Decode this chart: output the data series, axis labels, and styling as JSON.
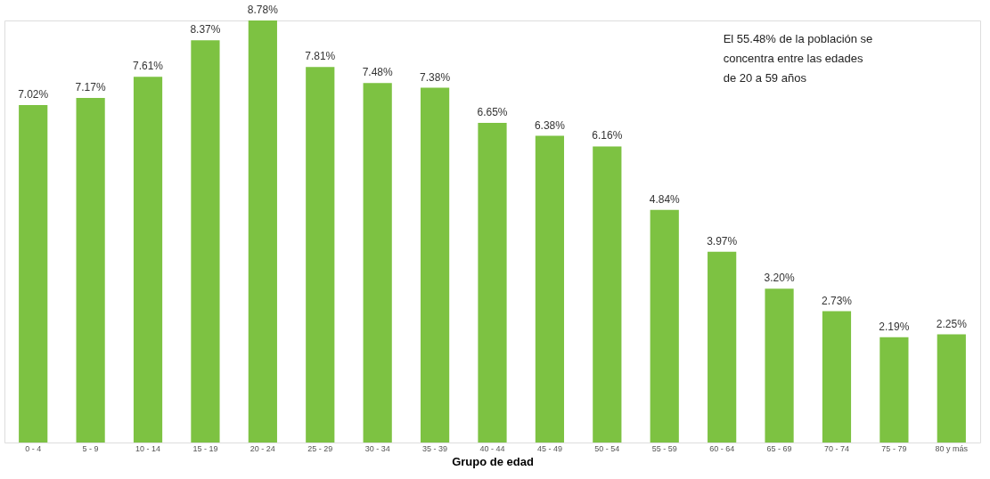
{
  "chart_data": {
    "type": "bar",
    "xlabel": "Grupo de edad",
    "categories": [
      "0 - 4",
      "5 - 9",
      "10 - 14",
      "15 - 19",
      "20 - 24",
      "25 - 29",
      "30 - 34",
      "35 - 39",
      "40 - 44",
      "45 - 49",
      "50 - 54",
      "55 - 59",
      "60 - 64",
      "65 - 69",
      "70 - 74",
      "75 - 79",
      "80 y más"
    ],
    "values": [
      7.02,
      7.17,
      7.61,
      8.37,
      8.78,
      7.81,
      7.48,
      7.38,
      6.65,
      6.38,
      6.16,
      4.84,
      3.97,
      3.2,
      2.73,
      2.19,
      2.25
    ],
    "value_labels": [
      "7.02%",
      "7.17%",
      "7.61%",
      "8.37%",
      "8.78%",
      "7.81%",
      "7.48%",
      "7.38%",
      "6.65%",
      "6.38%",
      "6.16%",
      "4.84%",
      "3.97%",
      "3.20%",
      "2.73%",
      "2.19%",
      "2.25%"
    ],
    "color": "#7dc242",
    "annotations": [
      "El 55.48% de la población se\nconcentra entre las edades\nde 20 a 59 años"
    ]
  }
}
